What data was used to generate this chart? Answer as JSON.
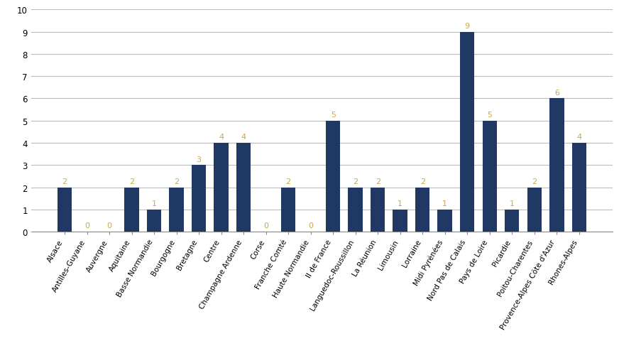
{
  "categories": [
    "Alsace",
    "Antilles-Guyane",
    "Auvergne",
    "Aquitaine",
    "Basse Normandie",
    "Bourgogne",
    "Bretagne",
    "Centre",
    "Champagne Ardenne",
    "Corse",
    "Franche Comté",
    "Haute Normandie",
    "Il de France",
    "Languedoc-Roussillon",
    "La Réunion",
    "Limousin",
    "Lorraine",
    "Midi Pyrénées",
    "Nord Pas de Calais",
    "Pays de Loire",
    "Picardie",
    "Poitou-Charentes",
    "Provence-Alpes Côte d'Azur",
    "Rhones-Alpes"
  ],
  "values": [
    2,
    0,
    0,
    2,
    1,
    2,
    3,
    4,
    4,
    0,
    2,
    0,
    5,
    2,
    2,
    1,
    2,
    1,
    9,
    5,
    1,
    2,
    6,
    4
  ],
  "bar_color": "#1F3864",
  "label_color": "#C9A84C",
  "ylim": [
    0,
    10
  ],
  "yticks": [
    0,
    1,
    2,
    3,
    4,
    5,
    6,
    7,
    8,
    9,
    10
  ],
  "grid_color": "#BBBBBB",
  "background_color": "#FFFFFF",
  "bar_width": 0.65,
  "label_fontsize": 7.5,
  "tick_fontsize": 8.5,
  "value_fontsize": 8
}
